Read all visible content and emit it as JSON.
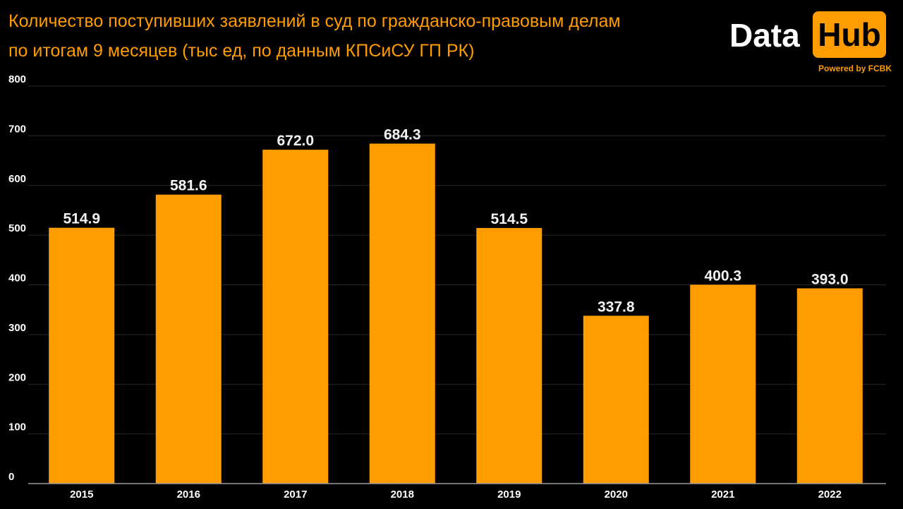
{
  "title": {
    "line1": "Количество поступивших заявлений в суд по гражданско-правовым делам",
    "line2": "по итогам 9 месяцев (тыс ед, по данным КПСиСУ ГП РК)"
  },
  "logo": {
    "word1": "Data",
    "word2": "Hub",
    "tagline": "Powered by FCBK"
  },
  "colors": {
    "background": "#000000",
    "bar": "#FF9D00",
    "title": "#FF9D00",
    "logo_box": "#FF9D00"
  },
  "chart_data": {
    "type": "bar",
    "categories": [
      "2015",
      "2016",
      "2017",
      "2018",
      "2019",
      "2020",
      "2021",
      "2022"
    ],
    "values": [
      514.9,
      581.6,
      672.0,
      684.3,
      514.5,
      337.8,
      400.3,
      393.0
    ],
    "data_labels": [
      "514.9",
      "581.6",
      "672.0",
      "684.3",
      "514.5",
      "337.8",
      "400.3",
      "393.0"
    ],
    "yticks": [
      0,
      100,
      200,
      300,
      400,
      500,
      600,
      700,
      800
    ],
    "ylim": [
      0,
      800
    ],
    "grid": true,
    "legend": "none"
  }
}
